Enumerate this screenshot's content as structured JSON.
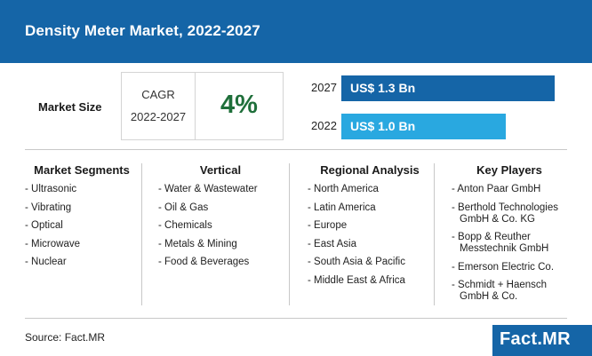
{
  "header": {
    "title": "Density Meter Market, 2022-2027"
  },
  "market_size": {
    "label": "Market Size",
    "cagr_label": "CAGR",
    "cagr_period": "2022-2027",
    "cagr_value": "4%"
  },
  "bars": [
    {
      "year": "2027",
      "label": "US$ 1.3 Bn",
      "value": 1.3,
      "color": "#1565a7"
    },
    {
      "year": "2022",
      "label": "US$ 1.0 Bn",
      "value": 1.0,
      "color": "#29a8e0"
    }
  ],
  "columns": [
    {
      "title": "Market Segments",
      "items": [
        [
          "- Ultrasonic"
        ],
        [
          "- Vibrating"
        ],
        [
          "- Optical"
        ],
        [
          "- Microwave"
        ],
        [
          "- Nuclear"
        ]
      ]
    },
    {
      "title": "Vertical",
      "items": [
        [
          "- Water & Wastewater"
        ],
        [
          "- Oil & Gas"
        ],
        [
          "- Chemicals"
        ],
        [
          "- Metals & Mining"
        ],
        [
          "- Food & Beverages"
        ]
      ]
    },
    {
      "title": "Regional Analysis",
      "items": [
        [
          "- North America"
        ],
        [
          "- Latin America"
        ],
        [
          "- Europe"
        ],
        [
          "- East Asia"
        ],
        [
          "- South Asia & Pacific"
        ],
        [
          "- Middle East & Africa"
        ]
      ]
    },
    {
      "title": "Key Players",
      "items": [
        [
          "- Anton Paar GmbH"
        ],
        [
          "- Berthold Technologies",
          "GmbH & Co. KG"
        ],
        [
          "- Bopp & Reuther",
          "Messtechnik GmbH"
        ],
        [
          "- Emerson Electric Co."
        ],
        [
          "- Schmidt + Haensch",
          "GmbH & Co."
        ]
      ]
    }
  ],
  "footer": {
    "source": "Source: Fact.MR",
    "logo": "Fact.MR"
  }
}
